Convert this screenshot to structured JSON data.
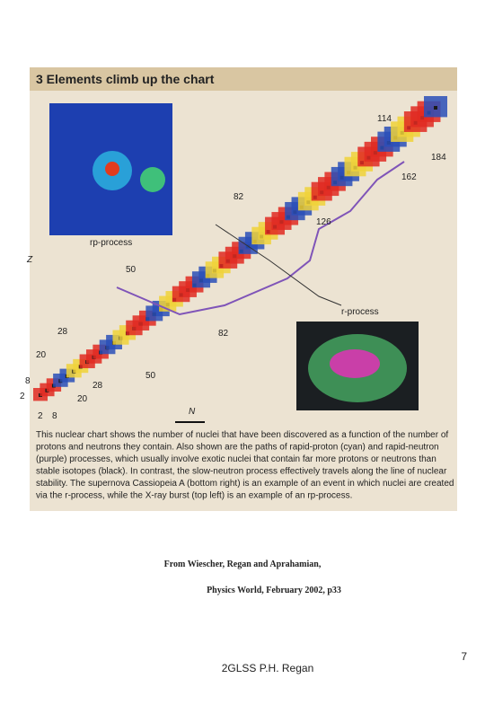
{
  "figure": {
    "title": "3 Elements climb up the chart",
    "labels": [
      "114",
      "184",
      "162",
      "82",
      "126",
      "rp-process",
      "50",
      "r-process",
      "28",
      "82",
      "20",
      "50",
      "8",
      "28",
      "2",
      "20",
      "2",
      "8",
      "N",
      "Z"
    ],
    "caption": [
      "This nuclear chart shows the number of nuclei that have been discovered as a function of the number of",
      "protons and neutrons they contain. Also shown are the paths of rapid-proton (cyan) and rapid-neutron",
      "(purple) processes, which usually involve exotic nuclei that contain far more protons or neutrons than",
      "stable isotopes (black). In contrast, the slow-neutron process effectively travels along the line of nuclear",
      "stability. The supernova Cassiopeia A (bottom right) is an example of an event in which nuclei are created",
      "via the r-process, while the X-ray burst (top left) is an example of an rp-process."
    ]
  },
  "citation": [
    "From Wiescher, Regan and Aprahamian,",
    "Physics World, February 2002, p33"
  ],
  "footer": {
    "page": "7",
    "author": "2GLSS P.H. Regan"
  }
}
